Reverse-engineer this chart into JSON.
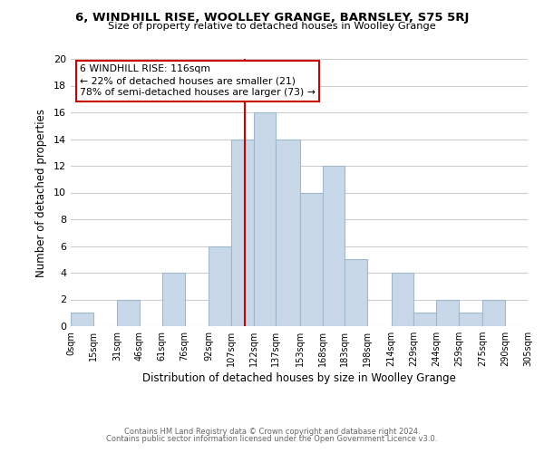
{
  "title": "6, WINDHILL RISE, WOOLLEY GRANGE, BARNSLEY, S75 5RJ",
  "subtitle": "Size of property relative to detached houses in Woolley Grange",
  "xlabel": "Distribution of detached houses by size in Woolley Grange",
  "ylabel": "Number of detached properties",
  "bin_edges": [
    0,
    15,
    31,
    46,
    61,
    76,
    92,
    107,
    122,
    137,
    153,
    168,
    183,
    198,
    214,
    229,
    244,
    259,
    275,
    290,
    305
  ],
  "bin_counts": [
    1,
    0,
    2,
    0,
    4,
    0,
    6,
    14,
    16,
    14,
    10,
    12,
    5,
    0,
    4,
    1,
    2,
    1,
    2,
    0
  ],
  "bar_color": "#c8d8e8",
  "bar_edgecolor": "#a0b8cc",
  "property_line_x": 116,
  "property_line_color": "#cc0000",
  "annotation_line1": "6 WINDHILL RISE: 116sqm",
  "annotation_line2": "← 22% of detached houses are smaller (21)",
  "annotation_line3": "78% of semi-detached houses are larger (73) →",
  "annotation_box_edgecolor": "#cc0000",
  "annotation_box_facecolor": "#ffffff",
  "ylim": [
    0,
    20
  ],
  "yticks": [
    0,
    2,
    4,
    6,
    8,
    10,
    12,
    14,
    16,
    18,
    20
  ],
  "tick_labels": [
    "0sqm",
    "15sqm",
    "31sqm",
    "46sqm",
    "61sqm",
    "76sqm",
    "92sqm",
    "107sqm",
    "122sqm",
    "137sqm",
    "153sqm",
    "168sqm",
    "183sqm",
    "198sqm",
    "214sqm",
    "229sqm",
    "244sqm",
    "259sqm",
    "275sqm",
    "290sqm",
    "305sqm"
  ],
  "footer_line1": "Contains HM Land Registry data © Crown copyright and database right 2024.",
  "footer_line2": "Contains public sector information licensed under the Open Government Licence v3.0.",
  "background_color": "#ffffff",
  "grid_color": "#cccccc"
}
